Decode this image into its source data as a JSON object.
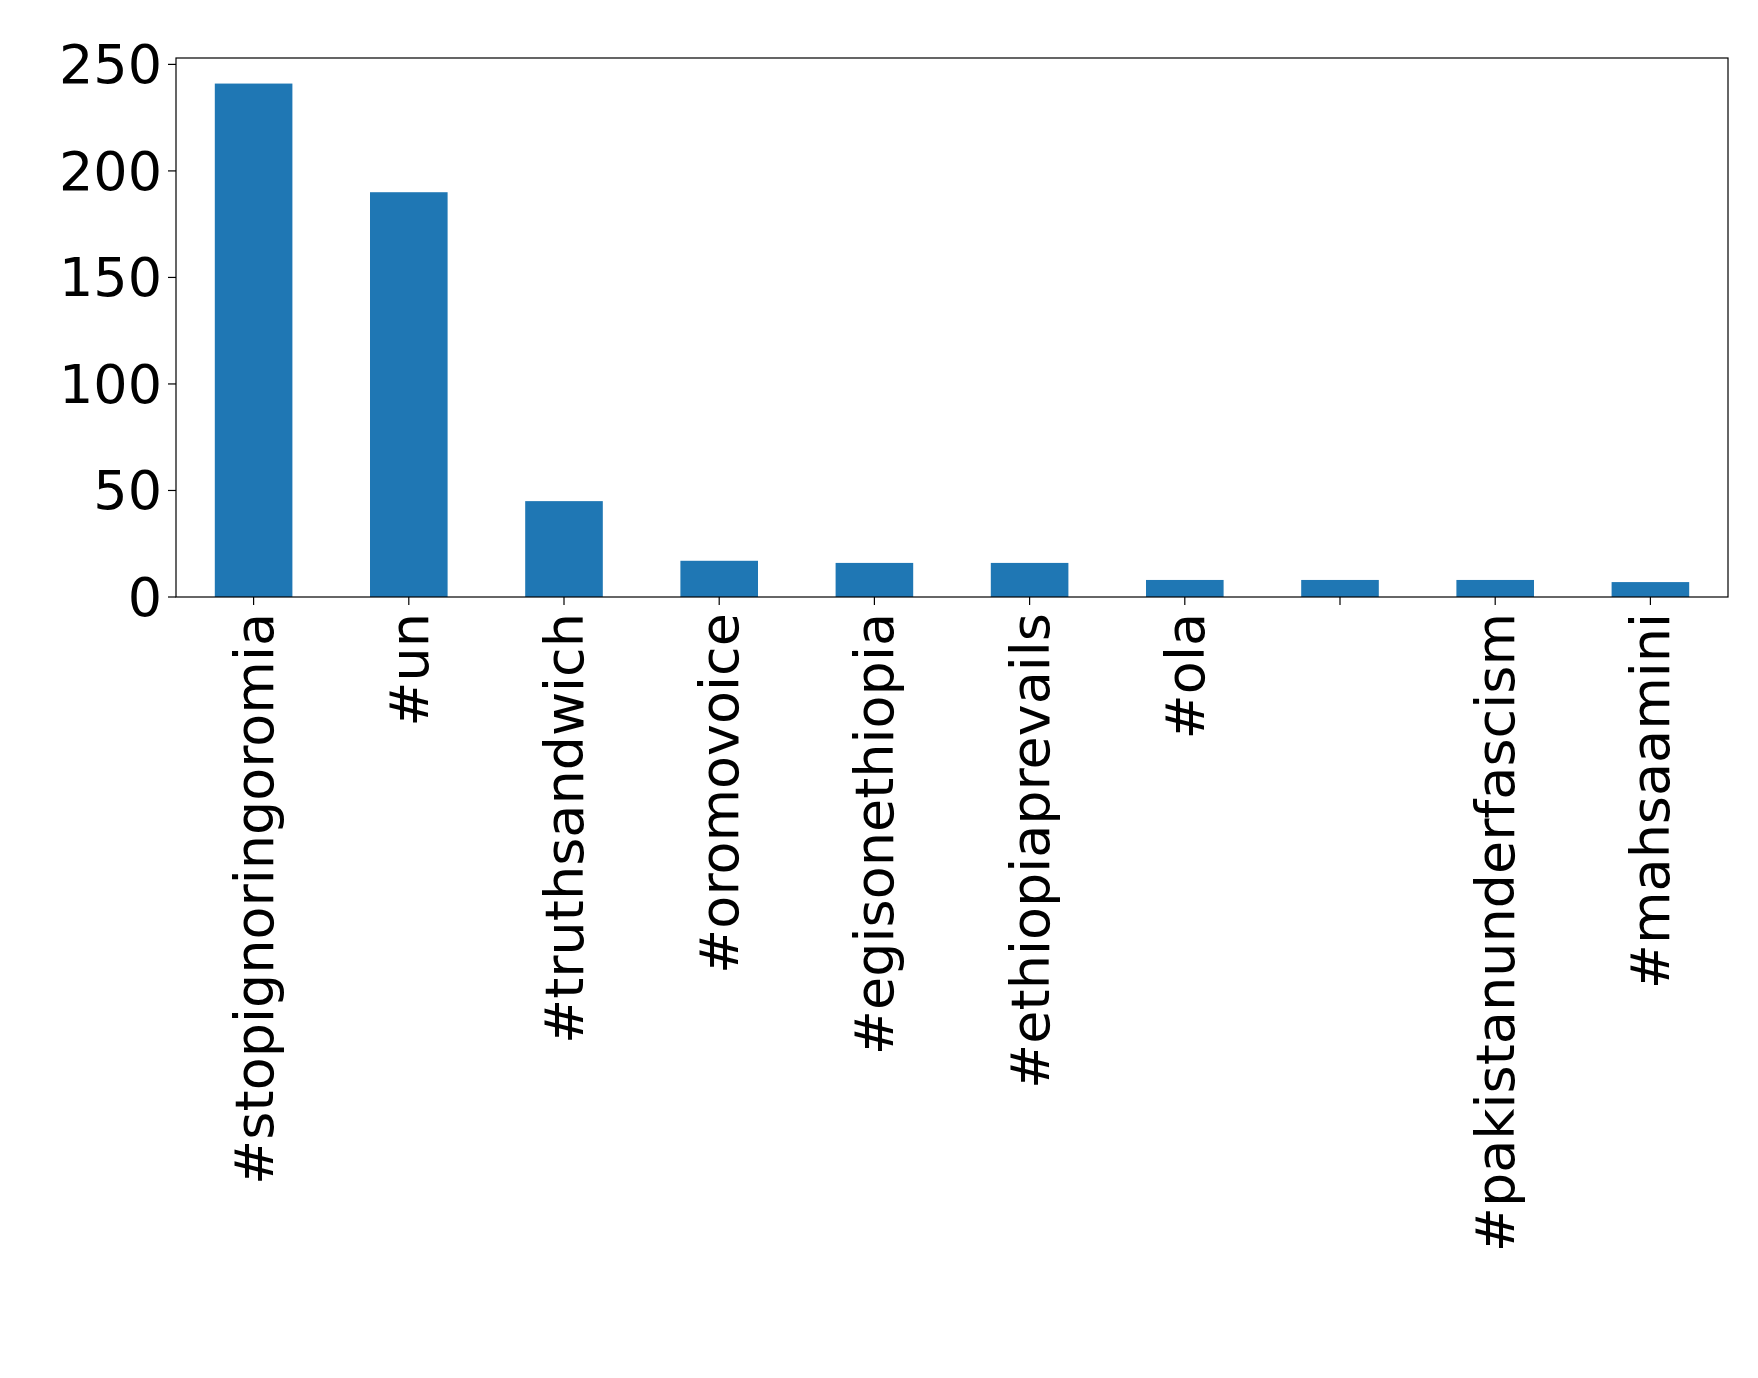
{
  "chart_data": {
    "type": "bar",
    "categories": [
      "#stopignoringoromia",
      "#un",
      "#truthsandwich",
      "#oromovoice",
      "#egisonethiopia",
      "#ethiopiaprevails",
      "#ola",
      null,
      "#pakistanunderfascism",
      "#mahsaamini"
    ],
    "values": [
      241,
      190,
      45,
      17,
      16,
      16,
      8,
      8,
      8,
      7
    ],
    "color": "#1f77b4",
    "ylim": [
      0,
      253
    ],
    "yticks": [
      0,
      50,
      100,
      150,
      200,
      250
    ],
    "grid": false
  }
}
